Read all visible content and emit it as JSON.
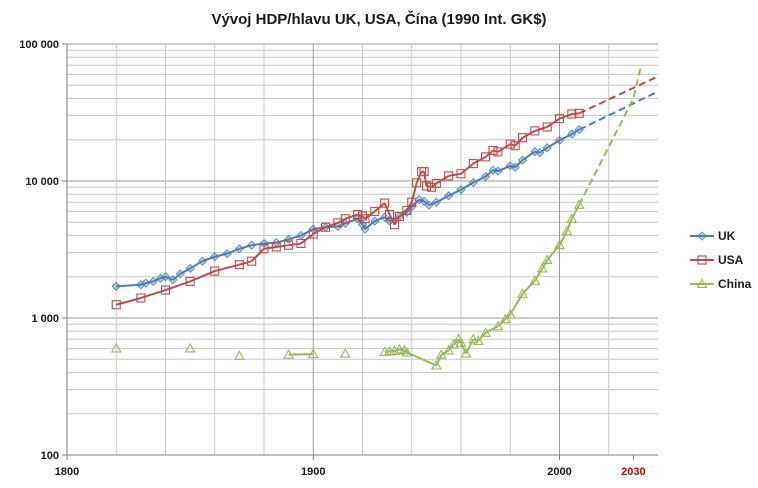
{
  "chart_data": {
    "type": "line",
    "title": "Vývoj HDP/hlavu UK, USA, Čína (1990 Int. GK$)",
    "xlabel": "",
    "ylabel": "",
    "xlim": [
      1800,
      2040
    ],
    "ylim": [
      100,
      100000
    ],
    "yscale": "log",
    "x_ticks": [
      {
        "value": 1800,
        "label": "1800",
        "highlight": false
      },
      {
        "value": 1900,
        "label": "1900",
        "highlight": false
      },
      {
        "value": 2000,
        "label": "2000",
        "highlight": false
      },
      {
        "value": 2030,
        "label": "2030",
        "highlight": true
      }
    ],
    "y_ticks": [
      {
        "value": 100,
        "label": "100"
      },
      {
        "value": 1000,
        "label": "1 000"
      },
      {
        "value": 10000,
        "label": "10 000"
      },
      {
        "value": 100000,
        "label": "100 000"
      }
    ],
    "grid": true,
    "legend_position": "right",
    "series": [
      {
        "name": "UK",
        "color": "#4a7ebb",
        "marker": "diamond",
        "x": [
          1820,
          1830,
          1832,
          1835,
          1838,
          1840,
          1843,
          1846,
          1850,
          1855,
          1860,
          1865,
          1870,
          1875,
          1880,
          1885,
          1890,
          1895,
          1900,
          1905,
          1910,
          1913,
          1918,
          1920,
          1921,
          1925,
          1929,
          1931,
          1935,
          1938,
          1940,
          1943,
          1945,
          1947,
          1950,
          1955,
          1960,
          1965,
          1970,
          1973,
          1975,
          1980,
          1982,
          1985,
          1990,
          1992,
          1995,
          2000,
          2005,
          2008
        ],
        "y": [
          1700,
          1750,
          1800,
          1850,
          1950,
          2000,
          1900,
          2100,
          2300,
          2600,
          2800,
          2950,
          3200,
          3400,
          3500,
          3550,
          3750,
          4000,
          4450,
          4600,
          4650,
          4900,
          5300,
          4800,
          4450,
          5100,
          5450,
          5100,
          5500,
          5900,
          6500,
          7300,
          7100,
          6650,
          7000,
          7800,
          8650,
          9750,
          10770,
          12000,
          11800,
          12900,
          12600,
          14200,
          16400,
          16100,
          17500,
          19800,
          22000,
          23700
        ]
      },
      {
        "name": "USA",
        "color": "#be4b48",
        "marker": "square",
        "x": [
          1820,
          1830,
          1840,
          1850,
          1860,
          1870,
          1875,
          1880,
          1885,
          1890,
          1895,
          1900,
          1905,
          1910,
          1913,
          1918,
          1920,
          1921,
          1925,
          1929,
          1931,
          1933,
          1935,
          1938,
          1940,
          1942,
          1944,
          1945,
          1946,
          1948,
          1950,
          1955,
          1960,
          1965,
          1970,
          1973,
          1975,
          1980,
          1982,
          1985,
          1990,
          1995,
          2000,
          2005,
          2008
        ],
        "y": [
          1250,
          1400,
          1600,
          1850,
          2200,
          2450,
          2600,
          3200,
          3300,
          3400,
          3500,
          4100,
          4600,
          4950,
          5300,
          5700,
          5550,
          5300,
          6000,
          6900,
          5700,
          4800,
          5500,
          6100,
          7000,
          9700,
          11700,
          11700,
          9200,
          9000,
          9600,
          10900,
          11300,
          13400,
          15000,
          16700,
          16300,
          18600,
          18100,
          20700,
          23200,
          24800,
          28500,
          30800,
          31200
        ]
      },
      {
        "name": "China",
        "color": "#98b954",
        "marker": "triangle",
        "x": [
          1820,
          1850,
          1870,
          1890,
          1900,
          1913,
          1929,
          1931,
          1933,
          1935,
          1937,
          1938,
          1950,
          1952,
          1955,
          1957,
          1959,
          1960,
          1962,
          1965,
          1967,
          1970,
          1975,
          1978,
          1980,
          1985,
          1990,
          1993,
          1995,
          2000,
          2003,
          2005,
          2008
        ],
        "y": [
          600,
          600,
          530,
          540,
          545,
          550,
          565,
          570,
          575,
          590,
          580,
          560,
          450,
          540,
          580,
          640,
          700,
          660,
          550,
          700,
          680,
          780,
          870,
          980,
          1060,
          1500,
          1870,
          2300,
          2650,
          3400,
          4300,
          5300,
          6700
        ]
      }
    ],
    "projections": [
      {
        "name": "UK",
        "color": "#4a7ebb",
        "x": [
          2008,
          2040
        ],
        "y": [
          23700,
          45000
        ]
      },
      {
        "name": "USA",
        "color": "#be4b48",
        "x": [
          2008,
          2040
        ],
        "y": [
          31200,
          58000
        ]
      },
      {
        "name": "China",
        "color": "#98b954",
        "x": [
          2008,
          2030,
          2033
        ],
        "y": [
          6700,
          40000,
          68000
        ]
      }
    ]
  }
}
